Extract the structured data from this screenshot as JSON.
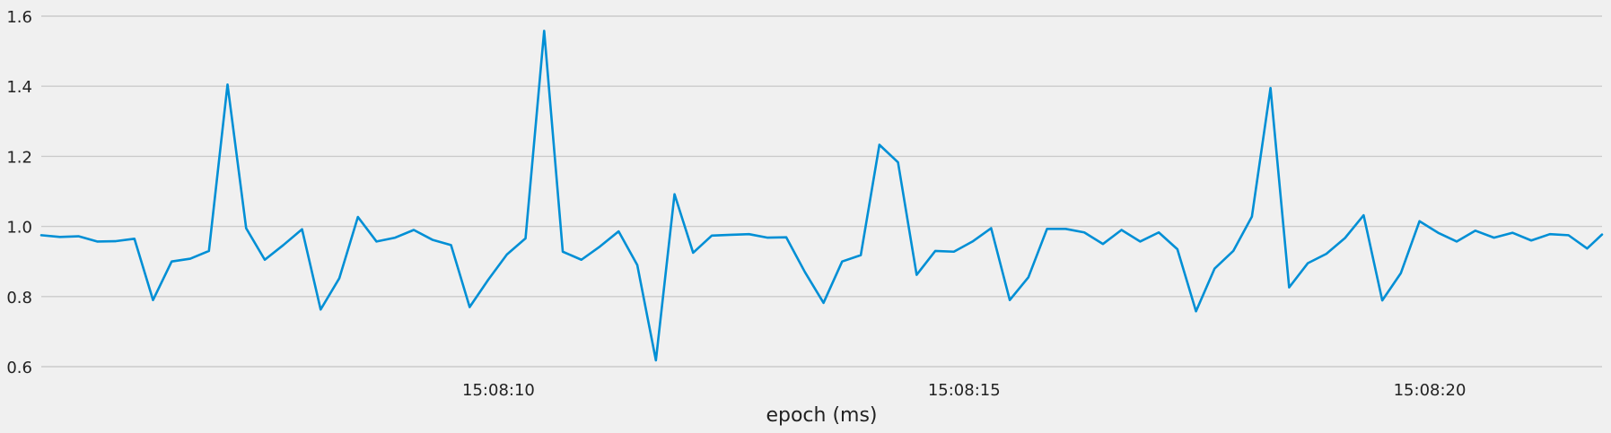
{
  "chart_data": {
    "type": "line",
    "title": "",
    "xlabel": "epoch (ms)",
    "ylabel": "",
    "grid": "y",
    "ylim": [
      0.6,
      1.6
    ],
    "xlim": [
      "15:08:05.090",
      "15:08:21.850"
    ],
    "yticks": [
      0.6,
      0.8,
      1.0,
      1.2,
      1.4,
      1.6
    ],
    "ytick_labels": [
      "0.6",
      "0.8",
      "1.0",
      "1.2",
      "1.4",
      "1.6"
    ],
    "xticks": [
      "15:08:10.000",
      "15:08:15.000",
      "15:08:20.000"
    ],
    "xtick_labels": [
      "15:08:10",
      "15:08:15",
      "15:08:20"
    ],
    "colors": {
      "line": "#008fd5",
      "grid": "#cbcbcb",
      "background": "#f0f0f0"
    },
    "series": [
      {
        "x": [
          "15:08:05.090",
          "15:08:05.290",
          "15:08:05.490",
          "15:08:05.690",
          "15:08:05.890",
          "15:08:06.090",
          "15:08:06.290",
          "15:08:06.490",
          "15:08:06.690",
          "15:08:06.890",
          "15:08:07.090",
          "15:08:07.290",
          "15:08:07.490",
          "15:08:07.690",
          "15:08:07.890",
          "15:08:08.090",
          "15:08:08.290",
          "15:08:08.490",
          "15:08:08.690",
          "15:08:08.890",
          "15:08:09.090",
          "15:08:09.290",
          "15:08:09.490",
          "15:08:09.690",
          "15:08:09.890",
          "15:08:10.090",
          "15:08:10.290",
          "15:08:10.490",
          "15:08:10.690",
          "15:08:10.890",
          "15:08:11.090",
          "15:08:11.290",
          "15:08:11.490",
          "15:08:11.690",
          "15:08:11.890",
          "15:08:12.090",
          "15:08:12.290",
          "15:08:12.490",
          "15:08:12.690",
          "15:08:12.890",
          "15:08:13.090",
          "15:08:13.290",
          "15:08:13.490",
          "15:08:13.690",
          "15:08:13.890",
          "15:08:14.090",
          "15:08:14.290",
          "15:08:14.490",
          "15:08:14.690",
          "15:08:14.890",
          "15:08:15.090",
          "15:08:15.290",
          "15:08:15.490",
          "15:08:15.690",
          "15:08:15.890",
          "15:08:16.090",
          "15:08:16.290",
          "15:08:16.490",
          "15:08:16.690",
          "15:08:16.890",
          "15:08:17.090",
          "15:08:17.290",
          "15:08:17.490",
          "15:08:17.690",
          "15:08:17.890",
          "15:08:18.090",
          "15:08:18.290",
          "15:08:18.490",
          "15:08:18.690",
          "15:08:18.890",
          "15:08:19.090",
          "15:08:19.290",
          "15:08:19.490",
          "15:08:19.690",
          "15:08:19.890",
          "15:08:20.090",
          "15:08:20.290",
          "15:08:20.490",
          "15:08:20.690",
          "15:08:20.890",
          "15:08:21.090",
          "15:08:21.290",
          "15:08:21.490",
          "15:08:21.690",
          "15:08:21.850"
        ],
        "values": [
          0.975,
          0.97,
          0.972,
          0.957,
          0.958,
          0.965,
          0.79,
          0.9,
          0.908,
          0.93,
          1.405,
          0.995,
          0.905,
          0.947,
          0.992,
          0.763,
          0.852,
          1.027,
          0.957,
          0.968,
          0.99,
          0.962,
          0.947,
          0.77,
          0.848,
          0.92,
          0.966,
          1.558,
          0.928,
          0.905,
          0.943,
          0.986,
          0.89,
          0.618,
          1.092,
          0.925,
          0.974,
          0.976,
          0.978,
          0.968,
          0.969,
          0.87,
          0.782,
          0.9,
          0.918,
          1.233,
          1.183,
          0.862,
          0.93,
          0.928,
          0.957,
          0.995,
          0.79,
          0.855,
          0.993,
          0.993,
          0.983,
          0.95,
          0.99,
          0.957,
          0.983,
          0.935,
          0.758,
          0.88,
          0.93,
          1.028,
          1.395,
          0.826,
          0.895,
          0.922,
          0.967,
          1.032,
          0.789,
          0.867,
          1.015,
          0.982,
          0.957,
          0.988,
          0.968,
          0.982,
          0.96,
          0.978,
          0.975,
          0.937,
          0.977
        ]
      }
    ]
  }
}
